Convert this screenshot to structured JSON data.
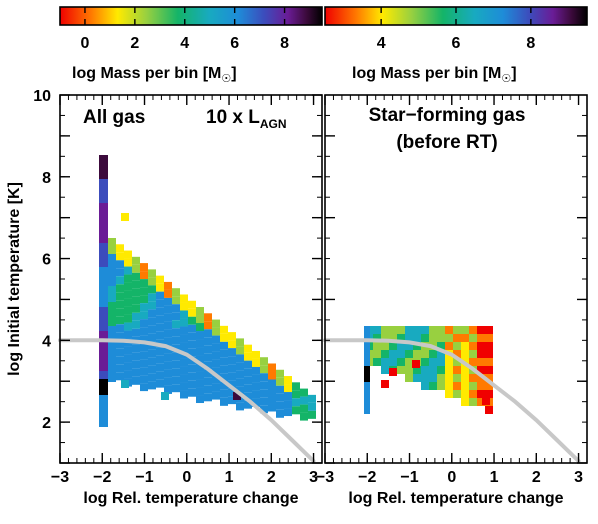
{
  "figure": {
    "ylabel": "log Initial temperature [K]",
    "left_panel_title": "All gas",
    "left_panel_annotation": {
      "prefix": "10 x L",
      "subscript": "AGN"
    },
    "right_panel_title_line1": "Star−forming gas",
    "right_panel_title_line2": "(before RT)"
  },
  "colorbars": [
    {
      "label": {
        "main": "log Mass per bin [M",
        "sub": "☉",
        "end": "]"
      },
      "ticks": [
        "0",
        "2",
        "4",
        "6",
        "8"
      ],
      "range": [
        -1,
        9.5
      ],
      "tick_values": [
        0,
        2,
        4,
        6,
        8
      ]
    },
    {
      "label": {
        "main": "log Mass per bin [M",
        "sub": "☉",
        "end": "]"
      },
      "ticks": [
        "4",
        "6",
        "8"
      ],
      "range": [
        2.5,
        9.5
      ],
      "tick_values": [
        4,
        6,
        8
      ]
    }
  ],
  "chart_data": [
    {
      "type": "heatmap",
      "title": "All gas",
      "annotation": "10 x L_AGN",
      "xlabel": "log Rel. temperature change",
      "ylabel": "log Initial temperature [K]",
      "xlim": [
        -3,
        3.2
      ],
      "ylim": [
        1,
        10
      ],
      "xticks": [
        "−3",
        "−2",
        "−1",
        "0",
        "1",
        "2",
        "3"
      ],
      "xtick_values": [
        -3,
        -2,
        -1,
        0,
        1,
        2,
        3
      ],
      "yticks": [
        "2",
        "4",
        "6",
        "8",
        "10"
      ],
      "ytick_values": [
        2,
        4,
        6,
        8,
        10
      ],
      "curve": {
        "color": "#c8c8c8",
        "x": [
          -3,
          -2.5,
          -2,
          -1.5,
          -1,
          -0.5,
          0,
          0.5,
          1,
          1.5,
          2,
          2.5,
          3
        ],
        "y": [
          4.0,
          4.0,
          4.0,
          3.99,
          3.95,
          3.86,
          3.65,
          3.3,
          2.9,
          2.5,
          2.05,
          1.55,
          1.05
        ]
      }
    },
    {
      "type": "heatmap",
      "title": "Star−forming gas (before RT)",
      "xlabel": "log Rel. temperature change",
      "xlim": [
        -3,
        3.2
      ],
      "ylim": [
        1,
        10
      ],
      "xticks": [
        "−3",
        "−2",
        "−1",
        "0",
        "1",
        "2",
        "3"
      ],
      "xtick_values": [
        -3,
        -2,
        -1,
        0,
        1,
        2,
        3
      ],
      "curve": {
        "color": "#c8c8c8",
        "x": [
          -3,
          -2.5,
          -2,
          -1.5,
          -1,
          -0.5,
          0,
          0.5,
          1,
          1.5,
          2,
          2.5,
          3
        ],
        "y": [
          4.0,
          4.0,
          4.0,
          3.99,
          3.95,
          3.86,
          3.65,
          3.3,
          2.9,
          2.5,
          2.05,
          1.55,
          1.05
        ]
      }
    }
  ]
}
